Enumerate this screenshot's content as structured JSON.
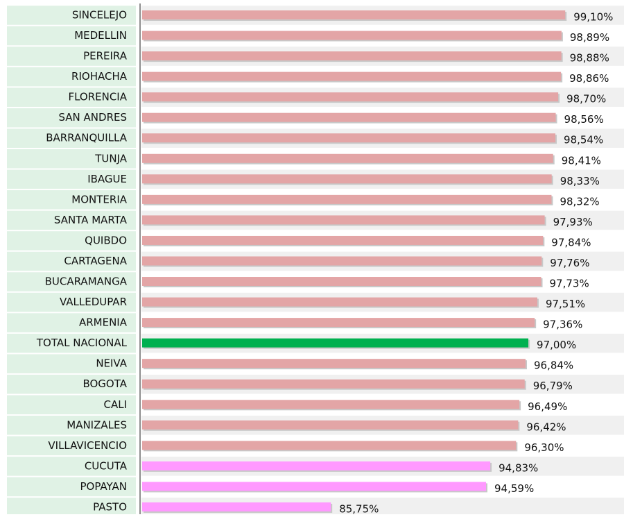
{
  "chart_data": {
    "type": "hbar",
    "categories": [
      "SINCELEJO",
      "MEDELLIN",
      "PEREIRA",
      "RIOHACHA",
      "FLORENCIA",
      "SAN ANDRES",
      "BARRANQUILLA",
      "TUNJA",
      "IBAGUE",
      "MONTERIA",
      "SANTA MARTA",
      "QUIBDO",
      "CARTAGENA",
      "BUCARAMANGA",
      "VALLEDUPAR",
      "ARMENIA",
      "TOTAL NACIONAL",
      "NEIVA",
      "BOGOTA",
      "CALI",
      "MANIZALES",
      "VILLAVICENCIO",
      "CUCUTA",
      "POPAYAN",
      "PASTO"
    ],
    "values": [
      99.1,
      98.89,
      98.88,
      98.86,
      98.7,
      98.56,
      98.54,
      98.41,
      98.33,
      98.32,
      97.93,
      97.84,
      97.76,
      97.73,
      97.51,
      97.36,
      97.0,
      96.84,
      96.79,
      96.49,
      96.42,
      96.3,
      94.83,
      94.59,
      85.75
    ],
    "value_labels": [
      "99,10%",
      "98,89%",
      "98,88%",
      "98,86%",
      "98,70%",
      "98,56%",
      "98,54%",
      "98,41%",
      "98,33%",
      "98,32%",
      "97,93%",
      "97,84%",
      "97,76%",
      "97,73%",
      "97,51%",
      "97,36%",
      "97,00%",
      "96,84%",
      "96,79%",
      "96,49%",
      "96,42%",
      "96,30%",
      "94,83%",
      "94,59%",
      "85,75%"
    ],
    "colors": [
      "#e3a5a6",
      "#e3a5a6",
      "#e3a5a6",
      "#e3a5a6",
      "#e3a5a6",
      "#e3a5a6",
      "#e3a5a6",
      "#e3a5a6",
      "#e3a5a6",
      "#e3a5a6",
      "#e3a5a6",
      "#e3a5a6",
      "#e3a5a6",
      "#e3a5a6",
      "#e3a5a6",
      "#e3a5a6",
      "#00b050",
      "#e3a5a6",
      "#e3a5a6",
      "#e3a5a6",
      "#e3a5a6",
      "#e3a5a6",
      "#ff99ff",
      "#ff99ff",
      "#ff99ff"
    ],
    "xlim": [
      75,
      100
    ]
  }
}
